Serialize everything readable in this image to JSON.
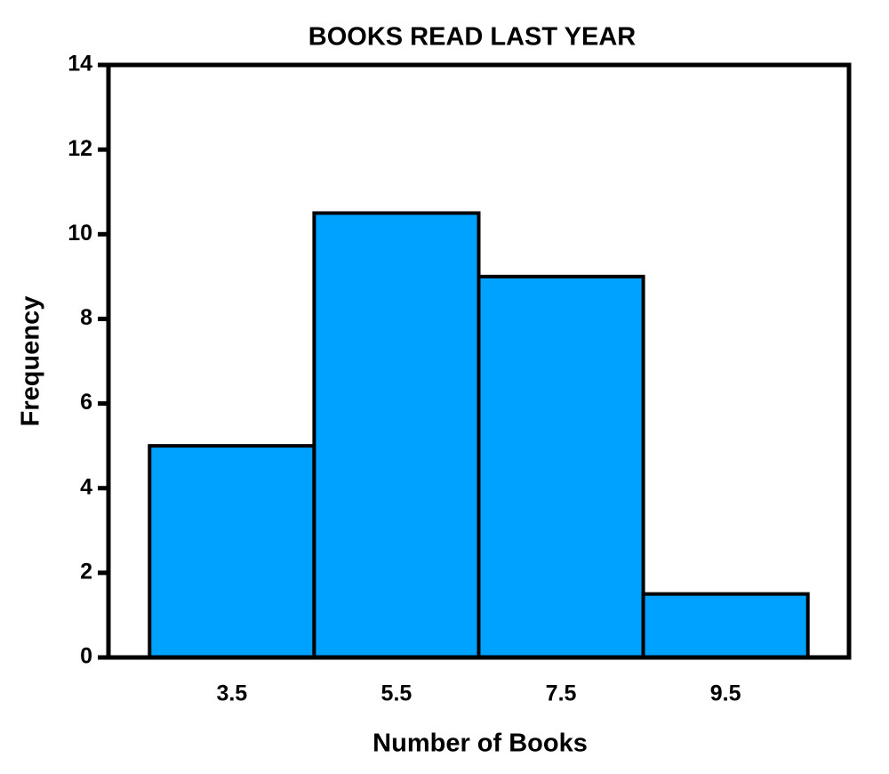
{
  "chart_data": {
    "type": "histogram",
    "title": "BOOKS READ LAST YEAR",
    "x_label": "Number of Books",
    "y_label": "Frequency",
    "bins": [
      2.5,
      4.5,
      6.5,
      8.5,
      10.5
    ],
    "values": [
      5,
      10.5,
      9,
      1.5
    ],
    "color": "#00a2ff",
    "xlim": [
      2,
      11
    ],
    "xticks": [
      3.5,
      5.5,
      7.5,
      9.5
    ],
    "ylim": [
      0,
      14
    ],
    "yticks": [
      0,
      2,
      4,
      6,
      8,
      10,
      12,
      14
    ],
    "grid": false
  }
}
